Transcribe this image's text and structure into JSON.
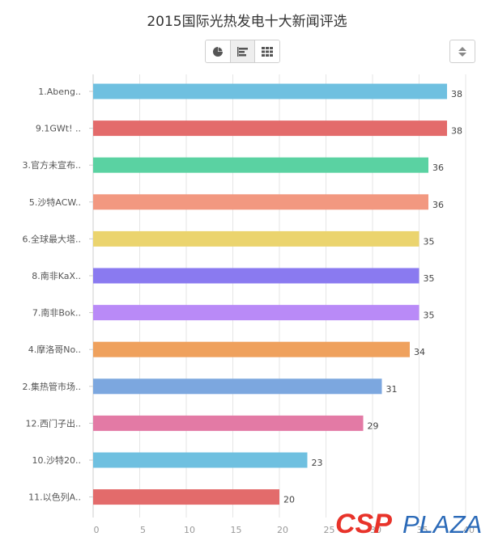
{
  "title": "2015国际光热发电十大新闻评选",
  "toolbar": {
    "views": [
      {
        "name": "pie-view",
        "icon": "pie-chart-icon"
      },
      {
        "name": "bar-view",
        "icon": "horizontal-bar-icon",
        "active": true
      },
      {
        "name": "table-view",
        "icon": "grid-icon"
      }
    ],
    "sort_icon": "sort-updown-icon"
  },
  "watermark": {
    "text": "CSP PLAZA",
    "colors": {
      "csp": "#e8332a",
      "plaza": "#2b6ab8"
    }
  },
  "chart_data": {
    "type": "bar",
    "orientation": "horizontal",
    "title": "2015国际光热发电十大新闻评选",
    "categories": [
      "1.Abeng..",
      "9.1GWt! ..",
      "3.官方未宣布..",
      "5.沙特ACW..",
      "6.全球最大塔..",
      "8.南非KaX..",
      "7.南非Bok..",
      "4.摩洛哥No..",
      "2.集热管市场..",
      "12.西门子出..",
      "10.沙特20..",
      "11.以色列A.."
    ],
    "values": [
      38,
      38,
      36,
      36,
      35,
      35,
      35,
      34,
      31,
      29,
      23,
      20
    ],
    "colors": [
      "#6fc0e0",
      "#e36b6b",
      "#5ad2a2",
      "#f29880",
      "#ebd46e",
      "#8a7af0",
      "#b98af7",
      "#efa15d",
      "#7ca7df",
      "#e37aa5",
      "#6fc0e0",
      "#e36b6b"
    ],
    "xticks": [
      0,
      5,
      10,
      15,
      20,
      25,
      30,
      35,
      40
    ],
    "xlim": [
      0,
      40
    ],
    "grid": true,
    "data_labels": true
  }
}
